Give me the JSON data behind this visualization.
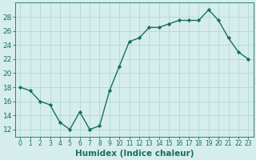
{
  "x": [
    0,
    1,
    2,
    3,
    4,
    5,
    6,
    7,
    8,
    9,
    10,
    11,
    12,
    13,
    14,
    15,
    16,
    17,
    18,
    19,
    20,
    21,
    22,
    23
  ],
  "y": [
    18,
    17.5,
    16,
    15.5,
    13,
    12,
    14.5,
    12,
    12.5,
    17.5,
    21,
    24.5,
    25,
    26.5,
    26.5,
    27,
    27.5,
    27.5,
    27.5,
    29,
    27.5,
    25,
    23,
    22
  ],
  "line_color": "#1a6e60",
  "marker": "D",
  "markersize": 2.2,
  "linewidth": 1.0,
  "bg_color": "#d5eeeb",
  "grid_color": "#b0d8d4",
  "xlabel": "Humidex (Indice chaleur)",
  "ylabel": "",
  "xlim": [
    -0.5,
    23.5
  ],
  "ylim": [
    11,
    30
  ],
  "yticks": [
    12,
    14,
    16,
    18,
    20,
    22,
    24,
    26,
    28
  ],
  "xticks": [
    0,
    1,
    2,
    3,
    4,
    5,
    6,
    7,
    8,
    9,
    10,
    11,
    12,
    13,
    14,
    15,
    16,
    17,
    18,
    19,
    20,
    21,
    22,
    23
  ],
  "tick_color": "#1a6e60",
  "ytick_fontsize": 6.5,
  "xtick_fontsize": 5.5,
  "xlabel_fontsize": 7.5
}
